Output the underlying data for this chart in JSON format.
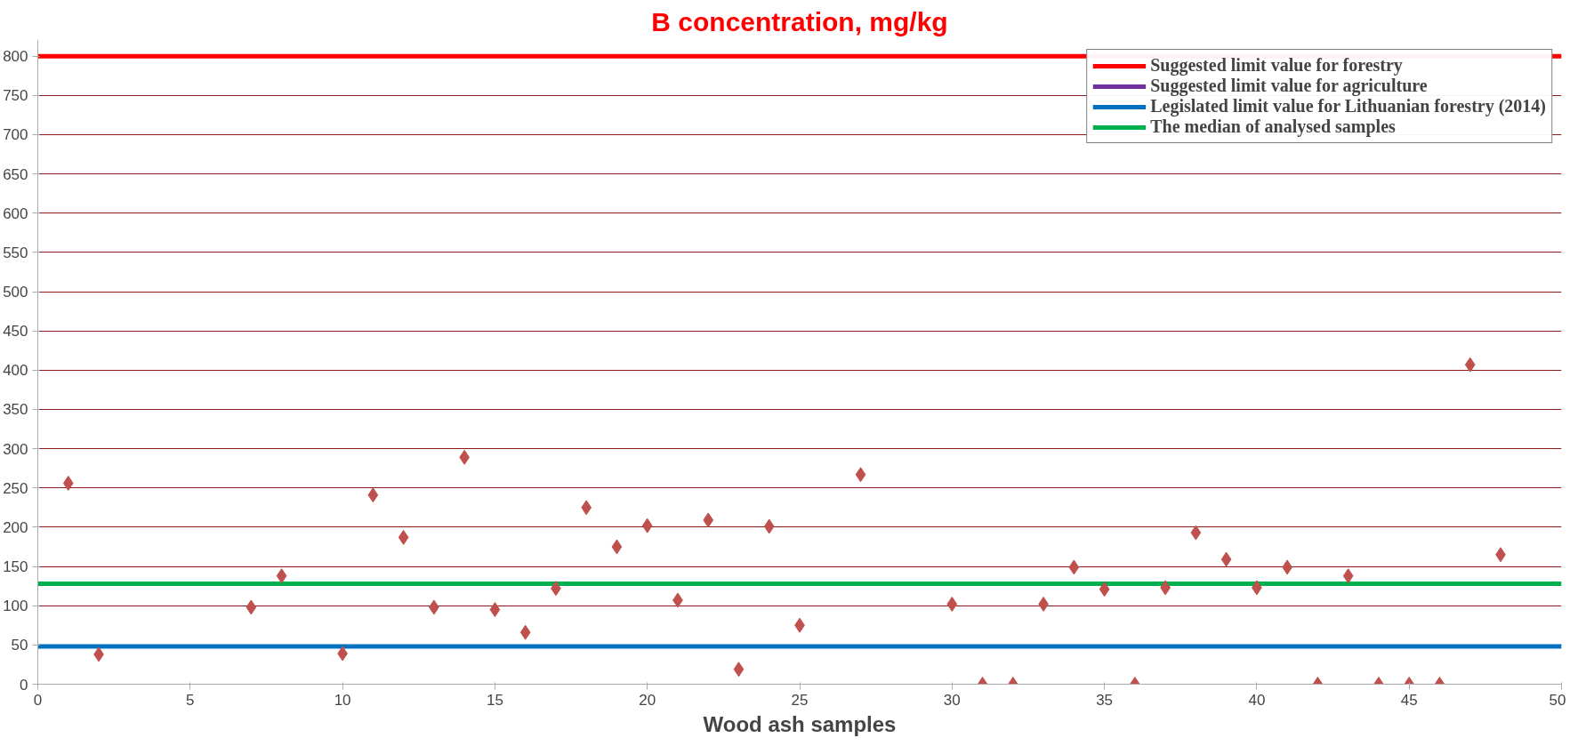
{
  "chart_data": {
    "type": "scatter",
    "title": "B concentration, mg/kg",
    "xlabel": "Wood ash samples",
    "x": [
      1,
      2,
      7,
      8,
      10,
      11,
      12,
      13,
      14,
      15,
      16,
      17,
      18,
      19,
      20,
      21,
      22,
      23,
      24,
      25,
      27,
      30,
      31,
      32,
      33,
      34,
      35,
      36,
      37,
      38,
      39,
      40,
      41,
      42,
      43,
      44,
      45,
      46,
      47,
      48
    ],
    "series": [
      {
        "color": "#c0504d",
        "values": [
          256,
          38,
          98,
          138,
          39,
          241,
          187,
          98,
          289,
          95,
          66,
          122,
          225,
          175,
          202,
          107,
          209,
          19,
          201,
          75,
          267,
          102,
          0,
          0,
          102,
          149,
          121,
          0,
          123,
          193,
          159,
          123,
          149,
          0,
          138,
          0,
          0,
          0,
          407,
          165
        ]
      }
    ],
    "marker": "diamond",
    "xlim": [
      0,
      50
    ],
    "xticks": [
      0,
      5,
      10,
      15,
      20,
      25,
      30,
      35,
      40,
      45,
      50
    ],
    "ylim": [
      0,
      820
    ],
    "yticks": [
      0,
      50,
      100,
      150,
      200,
      250,
      300,
      350,
      400,
      450,
      500,
      550,
      600,
      650,
      700,
      750,
      800
    ],
    "grid": "y",
    "legend": "top right",
    "ref_lines": [
      {
        "axis": "y",
        "value": 800,
        "label": "Suggested limit value for forestry",
        "color": "#ff0000"
      },
      {
        "axis": "y",
        "value": null,
        "label": "Suggested limit value for agriculture",
        "color": "#7030a0"
      },
      {
        "axis": "y",
        "value": 48,
        "label": "Legislated limit value for Lithuanian forestry (2014)",
        "color": "#0070c0"
      },
      {
        "axis": "y",
        "value": 128,
        "label": "The median of analysed samples",
        "color": "#00b050"
      }
    ]
  }
}
